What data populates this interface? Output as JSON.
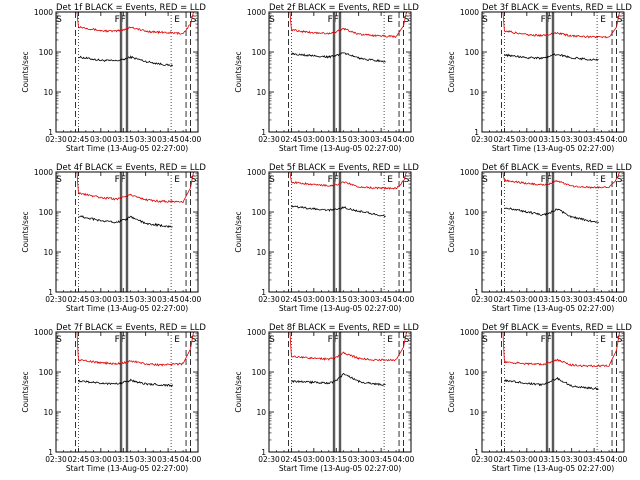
{
  "common": {
    "ylabel": "Counts/sec",
    "xlabel": "Start Time (13-Aug-05 02:27:00)",
    "xtick_labels": [
      "02:30",
      "02:45",
      "03:00",
      "03:15",
      "03:30",
      "03:45",
      "04:00"
    ],
    "ytick_labels": [
      "1",
      "10",
      "100",
      "1000"
    ],
    "event_marker_labels": [
      "S",
      "F",
      "F",
      "E",
      "S"
    ],
    "colors": {
      "events": "#000000",
      "lld": "#dd0000"
    }
  },
  "chart_data": [
    {
      "type": "line",
      "title": "Det 1f BLACK = Events, RED = LLD",
      "xlabel": "Start Time (13-Aug-05 02:27:00)",
      "ylabel": "Counts/sec",
      "y_scale": "log",
      "ylim": [
        1,
        1000
      ],
      "xlim": [
        "02:30",
        "04:05"
      ],
      "series": [
        {
          "name": "Events",
          "color": "#000000",
          "x": [
            "02:45",
            "03:00",
            "03:10",
            "03:15",
            "03:20",
            "03:30",
            "03:40",
            "03:48"
          ],
          "y": [
            75,
            62,
            60,
            65,
            75,
            58,
            50,
            45
          ]
        },
        {
          "name": "LLD",
          "color": "#dd0000",
          "x": [
            "02:44",
            "02:45",
            "03:00",
            "03:10",
            "03:15",
            "03:20",
            "03:30",
            "03:40",
            "03:55",
            "04:00",
            "04:02"
          ],
          "y": [
            1000,
            430,
            340,
            330,
            360,
            420,
            330,
            310,
            290,
            500,
            1000
          ]
        }
      ]
    },
    {
      "type": "line",
      "title": "Det 2f BLACK = Events, RED = LLD",
      "xlabel": "Start Time (13-Aug-05 02:27:00)",
      "ylabel": "Counts/sec",
      "y_scale": "log",
      "ylim": [
        1,
        1000
      ],
      "xlim": [
        "02:30",
        "04:05"
      ],
      "series": [
        {
          "name": "Events",
          "color": "#000000",
          "x": [
            "02:45",
            "03:00",
            "03:10",
            "03:15",
            "03:20",
            "03:30",
            "03:40",
            "03:48"
          ],
          "y": [
            90,
            80,
            75,
            80,
            95,
            70,
            62,
            58
          ]
        },
        {
          "name": "LLD",
          "color": "#dd0000",
          "x": [
            "02:44",
            "02:45",
            "03:00",
            "03:10",
            "03:15",
            "03:20",
            "03:30",
            "03:40",
            "03:55",
            "04:00",
            "04:02"
          ],
          "y": [
            1000,
            360,
            300,
            290,
            320,
            380,
            280,
            260,
            240,
            450,
            1000
          ]
        }
      ]
    },
    {
      "type": "line",
      "title": "Det 3f BLACK = Events, RED = LLD",
      "xlabel": "Start Time (13-Aug-05 02:27:00)",
      "ylabel": "Counts/sec",
      "y_scale": "log",
      "ylim": [
        1,
        1000
      ],
      "xlim": [
        "02:30",
        "04:05"
      ],
      "series": [
        {
          "name": "Events",
          "color": "#000000",
          "x": [
            "02:45",
            "03:00",
            "03:10",
            "03:15",
            "03:20",
            "03:30",
            "03:40",
            "03:48"
          ],
          "y": [
            85,
            72,
            70,
            78,
            88,
            72,
            66,
            62
          ]
        },
        {
          "name": "LLD",
          "color": "#dd0000",
          "x": [
            "02:44",
            "02:45",
            "03:00",
            "03:10",
            "03:15",
            "03:20",
            "03:30",
            "03:40",
            "03:55",
            "04:00",
            "04:02"
          ],
          "y": [
            1000,
            340,
            270,
            260,
            280,
            300,
            250,
            240,
            230,
            420,
            1000
          ]
        }
      ]
    },
    {
      "type": "line",
      "title": "Det 4f BLACK = Events, RED = LLD",
      "xlabel": "Start Time (13-Aug-05 02:27:00)",
      "ylabel": "Counts/sec",
      "y_scale": "log",
      "ylim": [
        1,
        1000
      ],
      "xlim": [
        "02:30",
        "04:05"
      ],
      "series": [
        {
          "name": "Events",
          "color": "#000000",
          "x": [
            "02:45",
            "03:00",
            "03:10",
            "03:15",
            "03:20",
            "03:30",
            "03:40",
            "03:48"
          ],
          "y": [
            80,
            60,
            55,
            62,
            75,
            52,
            46,
            42
          ]
        },
        {
          "name": "LLD",
          "color": "#dd0000",
          "x": [
            "02:44",
            "02:45",
            "03:00",
            "03:10",
            "03:15",
            "03:20",
            "03:30",
            "03:40",
            "03:55",
            "04:00",
            "04:02"
          ],
          "y": [
            1000,
            300,
            230,
            210,
            230,
            270,
            200,
            185,
            180,
            400,
            1000
          ]
        }
      ]
    },
    {
      "type": "line",
      "title": "Det 5f BLACK = Events, RED = LLD",
      "xlabel": "Start Time (13-Aug-05 02:27:00)",
      "ylabel": "Counts/sec",
      "y_scale": "log",
      "ylim": [
        1,
        1000
      ],
      "xlim": [
        "02:30",
        "04:05"
      ],
      "series": [
        {
          "name": "Events",
          "color": "#000000",
          "x": [
            "02:45",
            "03:00",
            "03:10",
            "03:15",
            "03:20",
            "03:30",
            "03:40",
            "03:48"
          ],
          "y": [
            140,
            120,
            110,
            118,
            130,
            105,
            90,
            80
          ]
        },
        {
          "name": "LLD",
          "color": "#dd0000",
          "x": [
            "02:44",
            "02:45",
            "03:00",
            "03:10",
            "03:15",
            "03:20",
            "03:30",
            "03:40",
            "03:55",
            "04:00",
            "04:02"
          ],
          "y": [
            1000,
            560,
            480,
            460,
            480,
            560,
            430,
            400,
            390,
            600,
            1000
          ]
        }
      ]
    },
    {
      "type": "line",
      "title": "Det 6f BLACK = Events, RED = LLD",
      "xlabel": "Start Time (13-Aug-05 02:27:00)",
      "ylabel": "Counts/sec",
      "y_scale": "log",
      "ylim": [
        1,
        1000
      ],
      "xlim": [
        "02:30",
        "04:05"
      ],
      "series": [
        {
          "name": "Events",
          "color": "#000000",
          "x": [
            "02:45",
            "03:00",
            "03:10",
            "03:15",
            "03:20",
            "03:30",
            "03:40",
            "03:48"
          ],
          "y": [
            130,
            100,
            85,
            92,
            120,
            75,
            62,
            55
          ]
        },
        {
          "name": "LLD",
          "color": "#dd0000",
          "x": [
            "02:44",
            "02:45",
            "03:00",
            "03:10",
            "03:15",
            "03:20",
            "03:30",
            "03:40",
            "03:55",
            "04:00",
            "04:02"
          ],
          "y": [
            1000,
            620,
            520,
            480,
            500,
            600,
            450,
            420,
            410,
            650,
            1000
          ]
        }
      ]
    },
    {
      "type": "line",
      "title": "Det 7f BLACK = Events, RED = LLD",
      "xlabel": "Start Time (13-Aug-05 02:27:00)",
      "ylabel": "Counts/sec",
      "y_scale": "log",
      "ylim": [
        1,
        1000
      ],
      "xlim": [
        "02:30",
        "04:05"
      ],
      "series": [
        {
          "name": "Events",
          "color": "#000000",
          "x": [
            "02:45",
            "03:00",
            "03:10",
            "03:15",
            "03:20",
            "03:30",
            "03:40",
            "03:48"
          ],
          "y": [
            60,
            52,
            50,
            55,
            62,
            50,
            48,
            46
          ]
        },
        {
          "name": "LLD",
          "color": "#dd0000",
          "x": [
            "02:44",
            "02:45",
            "03:00",
            "03:10",
            "03:15",
            "03:20",
            "03:30",
            "03:40",
            "03:55",
            "04:00",
            "04:02"
          ],
          "y": [
            1000,
            200,
            170,
            160,
            170,
            190,
            160,
            150,
            160,
            380,
            1000
          ]
        }
      ]
    },
    {
      "type": "line",
      "title": "Det 8f BLACK = Events, RED = LLD",
      "xlabel": "Start Time (13-Aug-05 02:27:00)",
      "ylabel": "Counts/sec",
      "y_scale": "log",
      "ylim": [
        1,
        1000
      ],
      "xlim": [
        "02:30",
        "04:05"
      ],
      "series": [
        {
          "name": "Events",
          "color": "#000000",
          "x": [
            "02:45",
            "03:00",
            "03:10",
            "03:15",
            "03:20",
            "03:30",
            "03:40",
            "03:48"
          ],
          "y": [
            58,
            55,
            52,
            60,
            90,
            58,
            50,
            48
          ]
        },
        {
          "name": "LLD",
          "color": "#dd0000",
          "x": [
            "02:44",
            "02:45",
            "03:00",
            "03:10",
            "03:15",
            "03:20",
            "03:30",
            "03:40",
            "03:55",
            "04:00",
            "04:02"
          ],
          "y": [
            1000,
            250,
            220,
            210,
            230,
            300,
            220,
            200,
            200,
            420,
            1000
          ]
        }
      ]
    },
    {
      "type": "line",
      "title": "Det 9f BLACK = Events, RED = LLD",
      "xlabel": "Start Time (13-Aug-05 02:27:00)",
      "ylabel": "Counts/sec",
      "y_scale": "log",
      "ylim": [
        1,
        1000
      ],
      "xlim": [
        "02:30",
        "04:05"
      ],
      "series": [
        {
          "name": "Events",
          "color": "#000000",
          "x": [
            "02:45",
            "03:00",
            "03:10",
            "03:15",
            "03:20",
            "03:30",
            "03:40",
            "03:48"
          ],
          "y": [
            62,
            52,
            48,
            55,
            70,
            45,
            40,
            38
          ]
        },
        {
          "name": "LLD",
          "color": "#dd0000",
          "x": [
            "02:44",
            "02:45",
            "03:00",
            "03:10",
            "03:15",
            "03:20",
            "03:30",
            "03:40",
            "03:55",
            "04:00",
            "04:02"
          ],
          "y": [
            1000,
            180,
            160,
            155,
            170,
            200,
            150,
            140,
            145,
            350,
            1000
          ]
        }
      ]
    }
  ]
}
